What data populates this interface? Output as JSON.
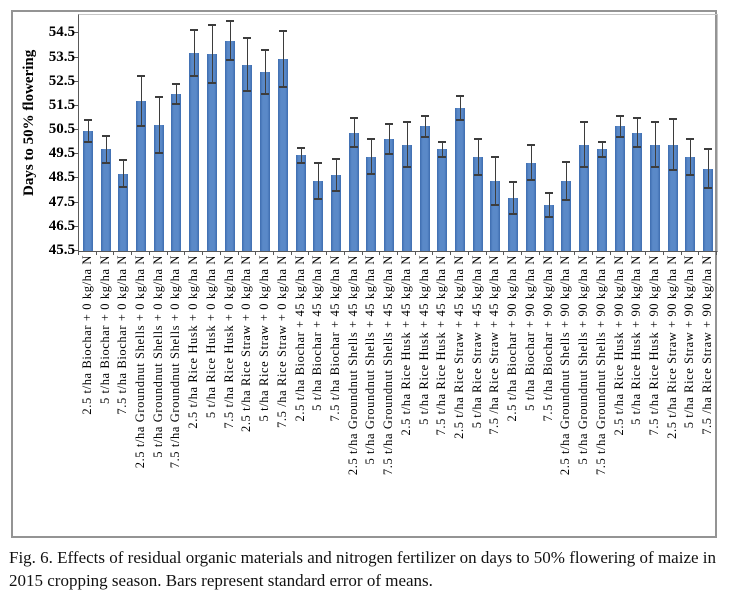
{
  "figure": {
    "caption": "Fig. 6. Effects of residual organic materials and nitrogen fertilizer on days to 50% flowering of maize in 2015 cropping season. Bars represent standard error of means."
  },
  "chart_data": {
    "type": "bar",
    "title": "",
    "xlabel": "",
    "ylabel": "Days to 50% flowering",
    "ylim": [
      45.5,
      55.26
    ],
    "yticks": [
      45.5,
      46.5,
      47.5,
      48.5,
      49.5,
      50.5,
      51.5,
      52.5,
      53.5,
      54.5
    ],
    "grid": false,
    "legend": false,
    "error_bars": "standard error of means",
    "bar_fill_color": "#4f81bd",
    "bar_edge_color": "#3e6db0",
    "error_color": "#3d3d3d",
    "categories": [
      "2.5 t/ha Biochar + 0 kg/ha N",
      "5 t/ha Biochar + 0 kg/ha N",
      "7.5 t/ha Biochar + 0 kg/ha N",
      "2.5 t/ha Groundnut Shells + 0 kg/ha N",
      "5 t/ha Groundnut Shells + 0 kg/ha N",
      "7.5 t/ha Groundnut Shells + 0 kg/ha N",
      "2.5 t/ha Rice Husk + 0 kg/ha N",
      "5 t/ha Rice Husk + 0 kg/ha N",
      "7.5 t/ha Rice Husk + 0 kg/ha N",
      "2.5 t/ha Rice Straw + 0 kg/ha N",
      "5 t/ha Rice Straw + 0 kg/ha N",
      "7.5 /ha Rice Straw + 0 kg/ha N",
      "2.5 t/ha Biochar + 45 kg/ha N",
      "5 t/ha Biochar + 45 kg/ha N",
      "7.5 t/ha Biochar + 45 kg/ha N",
      "2.5 t/ha Groundnut Shells + 45 kg/ha N",
      "5 t/ha Groundnut Shells + 45 kg/ha N",
      "7.5 t/ha Groundnut Shells + 45 kg/ha N",
      "2.5 t/ha Rice Husk + 45 kg/ha N",
      "5 t/ha Rice Husk + 45 kg/ha N",
      "7.5 t/ha Rice Husk + 45 kg/ha N",
      "2.5 t/ha Rice Straw + 45 kg/ha N",
      "5 t/ha Rice Straw + 45 kg/ha N",
      "7.5 /ha Rice Straw + 45 kg/ha N",
      "2.5 t/ha Biochar + 90 kg/ha N",
      "5 t/ha Biochar + 90 kg/ha N",
      "7.5 t/ha Biochar + 90 kg/ha N",
      "2.5 t/ha Groundnut Shells + 90 kg/ha N",
      "5 t/ha Groundnut Shells + 90 kg/ha N",
      "7.5 t/ha Groundnut Shells + 90 kg/ha N",
      "2.5 t/ha Rice Husk + 90 kg/ha N",
      "5 t/ha Rice Husk + 90 kg/ha N",
      "7.5 t/ha Rice Husk + 90 kg/ha N",
      "2.5 t/ha Rice Straw + 90 kg/ha N",
      "5 t/ha Rice Straw + 90 kg/ha N",
      "7.5 /ha Rice Straw + 90 kg/ha N"
    ],
    "values": [
      50.45,
      49.7,
      48.7,
      51.7,
      50.7,
      52.0,
      53.7,
      53.65,
      54.2,
      53.2,
      52.9,
      53.45,
      49.45,
      48.4,
      48.65,
      50.4,
      49.4,
      50.15,
      49.9,
      50.65,
      49.7,
      51.4,
      49.4,
      48.4,
      47.7,
      49.15,
      47.4,
      48.4,
      49.9,
      49.7,
      50.65,
      50.4,
      49.9,
      49.9,
      49.4,
      48.9
    ],
    "errors": [
      0.45,
      0.55,
      0.55,
      1.05,
      1.15,
      0.4,
      0.95,
      1.2,
      0.8,
      1.1,
      0.9,
      1.15,
      0.3,
      0.75,
      0.65,
      0.6,
      0.72,
      0.62,
      0.92,
      0.45,
      0.3,
      0.5,
      0.75,
      1.0,
      0.65,
      0.72,
      0.5,
      0.8,
      0.92,
      0.3,
      0.45,
      0.6,
      0.92,
      1.05,
      0.75,
      0.8
    ]
  }
}
